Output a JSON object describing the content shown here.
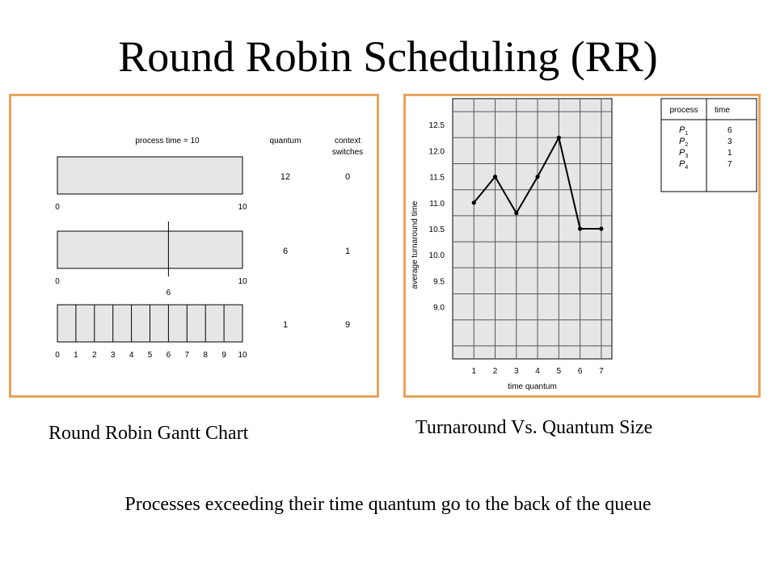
{
  "slide": {
    "title": "Round Robin Scheduling (RR)",
    "caption_gantt": "Round Robin Gantt Chart",
    "caption_turnaround": "Turnaround Vs. Quantum Size",
    "footer_note": "Processes exceeding their time quantum go to the back of the queue"
  },
  "colors": {
    "frame_border": "#e8a35c",
    "bar_fill": "#e6e6e6",
    "grid_fill": "#e6e6e6"
  },
  "gantt": {
    "header_process_time": "process time = 10",
    "col_quantum": "quantum",
    "col_context_1": "context",
    "col_context_2": "switches",
    "rows": [
      {
        "quantum": "12",
        "switches": "0",
        "ticks": [
          "0",
          "10"
        ],
        "divisions": 1
      },
      {
        "quantum": "6",
        "switches": "1",
        "ticks": [
          "0",
          "6",
          "10"
        ],
        "divisions": 2
      },
      {
        "quantum": "1",
        "switches": "9",
        "ticks": [
          "0",
          "1",
          "2",
          "3",
          "4",
          "5",
          "6",
          "7",
          "8",
          "9",
          "10"
        ],
        "divisions": 10
      }
    ]
  },
  "chart_data": {
    "type": "line",
    "x": [
      1,
      2,
      3,
      4,
      5,
      6,
      7
    ],
    "series": [
      {
        "values": [
          11.0,
          11.5,
          10.8,
          11.5,
          12.25,
          10.5,
          10.5
        ]
      }
    ],
    "xlabel": "time quantum",
    "ylabel": "average turnaround time",
    "xlim": [
      0,
      7.5
    ],
    "ylim": [
      8.0,
      13.0
    ],
    "x_ticks": [
      "1",
      "2",
      "3",
      "4",
      "5",
      "6",
      "7"
    ],
    "y_ticks": [
      "9.0",
      "9.5",
      "10.0",
      "10.5",
      "11.0",
      "11.5",
      "12.0",
      "12.5"
    ],
    "grid": true,
    "table": {
      "headers": [
        "process",
        "time"
      ],
      "rows": [
        {
          "process": "P",
          "sub": "1",
          "time": "6"
        },
        {
          "process": "P",
          "sub": "2",
          "time": "3"
        },
        {
          "process": "P",
          "sub": "3",
          "time": "1"
        },
        {
          "process": "P",
          "sub": "4",
          "time": "7"
        }
      ]
    }
  }
}
